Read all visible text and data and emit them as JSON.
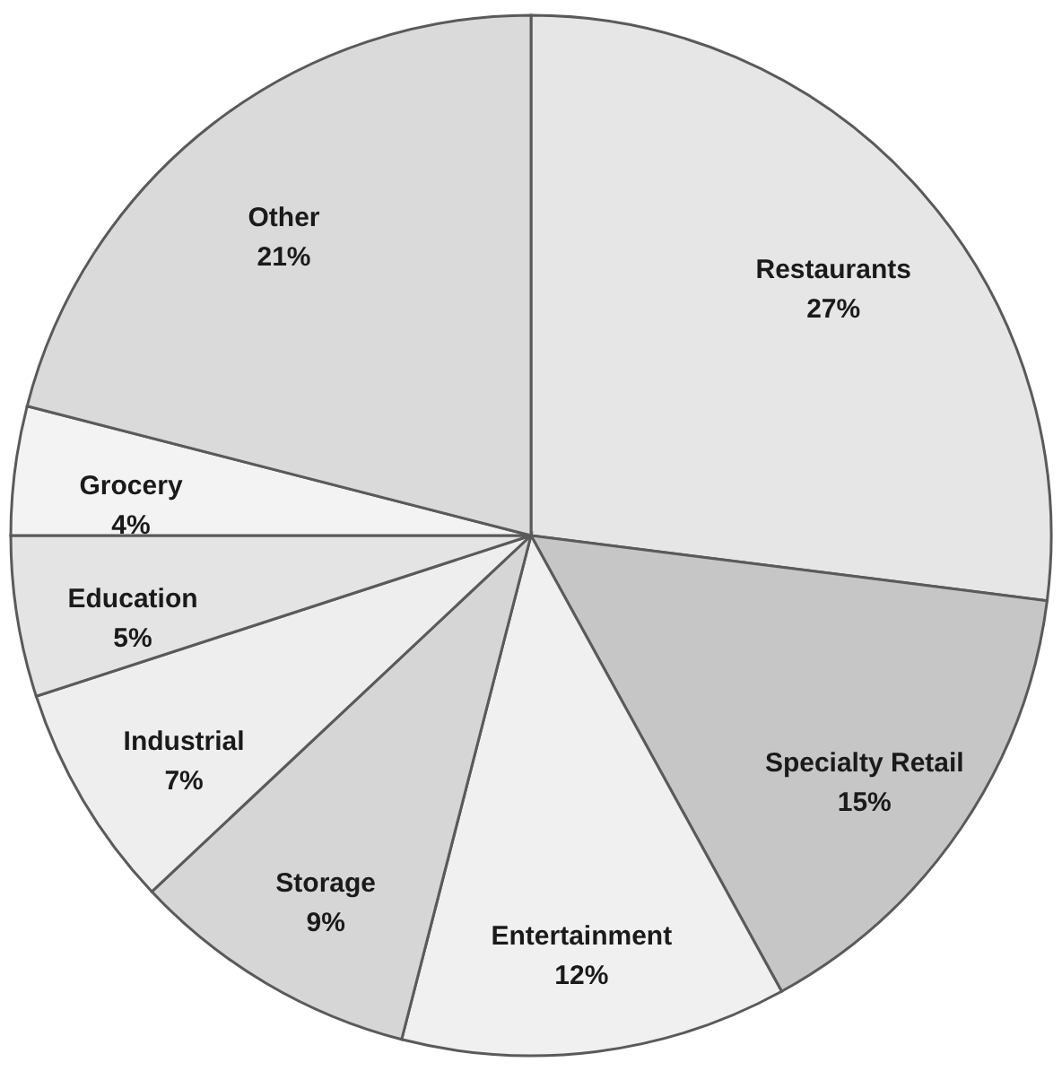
{
  "chart_data": {
    "type": "pie",
    "categories": [
      "Restaurants",
      "Specialty Retail",
      "Entertainment",
      "Storage",
      "Industrial",
      "Education",
      "Grocery",
      "Other"
    ],
    "values": [
      27,
      15,
      12,
      9,
      7,
      5,
      4,
      21
    ],
    "value_labels": [
      "27%",
      "15%",
      "12%",
      "9%",
      "7%",
      "5%",
      "4%",
      "21%"
    ],
    "colors": [
      "#e6e6e6",
      "#c6c6c6",
      "#f0f0f0",
      "#d6d6d6",
      "#eeeeee",
      "#e4e4e4",
      "#f3f3f3",
      "#dadada"
    ]
  }
}
